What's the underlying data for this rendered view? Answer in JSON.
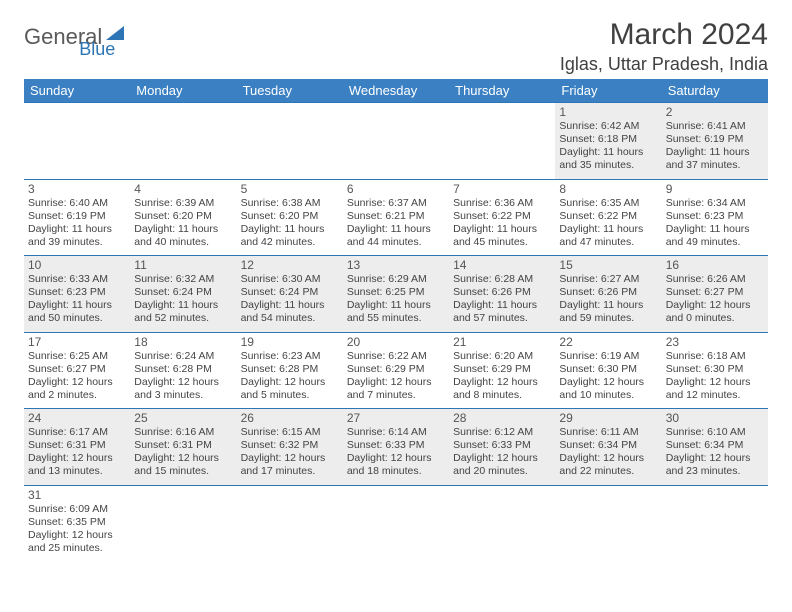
{
  "logo": {
    "main": "General",
    "sub": "Blue"
  },
  "title": "March 2024",
  "location": "Iglas, Uttar Pradesh, India",
  "colors": {
    "header_bg": "#3a80c3",
    "header_text": "#ffffff",
    "row_border": "#2e75b6",
    "alt_row_bg": "#ededed",
    "page_bg": "#ffffff",
    "text": "#404040"
  },
  "day_headers": [
    "Sunday",
    "Monday",
    "Tuesday",
    "Wednesday",
    "Thursday",
    "Friday",
    "Saturday"
  ],
  "weeks": [
    [
      null,
      null,
      null,
      null,
      null,
      {
        "n": "1",
        "sr": "Sunrise: 6:42 AM",
        "ss": "Sunset: 6:18 PM",
        "dl": "Daylight: 11 hours and 35 minutes."
      },
      {
        "n": "2",
        "sr": "Sunrise: 6:41 AM",
        "ss": "Sunset: 6:19 PM",
        "dl": "Daylight: 11 hours and 37 minutes."
      }
    ],
    [
      {
        "n": "3",
        "sr": "Sunrise: 6:40 AM",
        "ss": "Sunset: 6:19 PM",
        "dl": "Daylight: 11 hours and 39 minutes."
      },
      {
        "n": "4",
        "sr": "Sunrise: 6:39 AM",
        "ss": "Sunset: 6:20 PM",
        "dl": "Daylight: 11 hours and 40 minutes."
      },
      {
        "n": "5",
        "sr": "Sunrise: 6:38 AM",
        "ss": "Sunset: 6:20 PM",
        "dl": "Daylight: 11 hours and 42 minutes."
      },
      {
        "n": "6",
        "sr": "Sunrise: 6:37 AM",
        "ss": "Sunset: 6:21 PM",
        "dl": "Daylight: 11 hours and 44 minutes."
      },
      {
        "n": "7",
        "sr": "Sunrise: 6:36 AM",
        "ss": "Sunset: 6:22 PM",
        "dl": "Daylight: 11 hours and 45 minutes."
      },
      {
        "n": "8",
        "sr": "Sunrise: 6:35 AM",
        "ss": "Sunset: 6:22 PM",
        "dl": "Daylight: 11 hours and 47 minutes."
      },
      {
        "n": "9",
        "sr": "Sunrise: 6:34 AM",
        "ss": "Sunset: 6:23 PM",
        "dl": "Daylight: 11 hours and 49 minutes."
      }
    ],
    [
      {
        "n": "10",
        "sr": "Sunrise: 6:33 AM",
        "ss": "Sunset: 6:23 PM",
        "dl": "Daylight: 11 hours and 50 minutes."
      },
      {
        "n": "11",
        "sr": "Sunrise: 6:32 AM",
        "ss": "Sunset: 6:24 PM",
        "dl": "Daylight: 11 hours and 52 minutes."
      },
      {
        "n": "12",
        "sr": "Sunrise: 6:30 AM",
        "ss": "Sunset: 6:24 PM",
        "dl": "Daylight: 11 hours and 54 minutes."
      },
      {
        "n": "13",
        "sr": "Sunrise: 6:29 AM",
        "ss": "Sunset: 6:25 PM",
        "dl": "Daylight: 11 hours and 55 minutes."
      },
      {
        "n": "14",
        "sr": "Sunrise: 6:28 AM",
        "ss": "Sunset: 6:26 PM",
        "dl": "Daylight: 11 hours and 57 minutes."
      },
      {
        "n": "15",
        "sr": "Sunrise: 6:27 AM",
        "ss": "Sunset: 6:26 PM",
        "dl": "Daylight: 11 hours and 59 minutes."
      },
      {
        "n": "16",
        "sr": "Sunrise: 6:26 AM",
        "ss": "Sunset: 6:27 PM",
        "dl": "Daylight: 12 hours and 0 minutes."
      }
    ],
    [
      {
        "n": "17",
        "sr": "Sunrise: 6:25 AM",
        "ss": "Sunset: 6:27 PM",
        "dl": "Daylight: 12 hours and 2 minutes."
      },
      {
        "n": "18",
        "sr": "Sunrise: 6:24 AM",
        "ss": "Sunset: 6:28 PM",
        "dl": "Daylight: 12 hours and 3 minutes."
      },
      {
        "n": "19",
        "sr": "Sunrise: 6:23 AM",
        "ss": "Sunset: 6:28 PM",
        "dl": "Daylight: 12 hours and 5 minutes."
      },
      {
        "n": "20",
        "sr": "Sunrise: 6:22 AM",
        "ss": "Sunset: 6:29 PM",
        "dl": "Daylight: 12 hours and 7 minutes."
      },
      {
        "n": "21",
        "sr": "Sunrise: 6:20 AM",
        "ss": "Sunset: 6:29 PM",
        "dl": "Daylight: 12 hours and 8 minutes."
      },
      {
        "n": "22",
        "sr": "Sunrise: 6:19 AM",
        "ss": "Sunset: 6:30 PM",
        "dl": "Daylight: 12 hours and 10 minutes."
      },
      {
        "n": "23",
        "sr": "Sunrise: 6:18 AM",
        "ss": "Sunset: 6:30 PM",
        "dl": "Daylight: 12 hours and 12 minutes."
      }
    ],
    [
      {
        "n": "24",
        "sr": "Sunrise: 6:17 AM",
        "ss": "Sunset: 6:31 PM",
        "dl": "Daylight: 12 hours and 13 minutes."
      },
      {
        "n": "25",
        "sr": "Sunrise: 6:16 AM",
        "ss": "Sunset: 6:31 PM",
        "dl": "Daylight: 12 hours and 15 minutes."
      },
      {
        "n": "26",
        "sr": "Sunrise: 6:15 AM",
        "ss": "Sunset: 6:32 PM",
        "dl": "Daylight: 12 hours and 17 minutes."
      },
      {
        "n": "27",
        "sr": "Sunrise: 6:14 AM",
        "ss": "Sunset: 6:33 PM",
        "dl": "Daylight: 12 hours and 18 minutes."
      },
      {
        "n": "28",
        "sr": "Sunrise: 6:12 AM",
        "ss": "Sunset: 6:33 PM",
        "dl": "Daylight: 12 hours and 20 minutes."
      },
      {
        "n": "29",
        "sr": "Sunrise: 6:11 AM",
        "ss": "Sunset: 6:34 PM",
        "dl": "Daylight: 12 hours and 22 minutes."
      },
      {
        "n": "30",
        "sr": "Sunrise: 6:10 AM",
        "ss": "Sunset: 6:34 PM",
        "dl": "Daylight: 12 hours and 23 minutes."
      }
    ],
    [
      {
        "n": "31",
        "sr": "Sunrise: 6:09 AM",
        "ss": "Sunset: 6:35 PM",
        "dl": "Daylight: 12 hours and 25 minutes."
      },
      null,
      null,
      null,
      null,
      null,
      null
    ]
  ]
}
